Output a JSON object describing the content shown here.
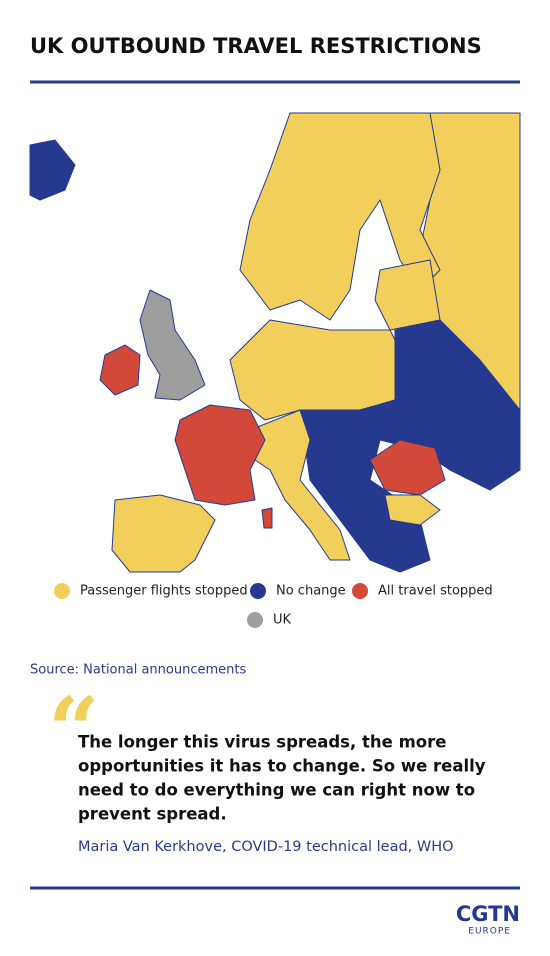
{
  "header": {
    "title": "UK OUTBOUND TRAVEL RESTRICTIONS"
  },
  "legend": [
    {
      "name": "Passenger flights stopped",
      "color": "#f2cf5b"
    },
    {
      "name": "No change",
      "color": "#253a8e"
    },
    {
      "name": "All travel stopped",
      "color": "#d2493a"
    },
    {
      "name": "UK",
      "color": "#9e9e9e"
    }
  ],
  "source": "Source: National announcements",
  "quote": {
    "text_lines": [
      "The longer this virus spreads, the more",
      "opportunities it has to change. So we really",
      "need to do everything we can right now to",
      "prevent spread."
    ],
    "attribution": "Maria Van Kerkhove, COVID-19 technical lead, WHO"
  },
  "logo": {
    "name": "CGTN",
    "region": "EUROPE"
  }
}
